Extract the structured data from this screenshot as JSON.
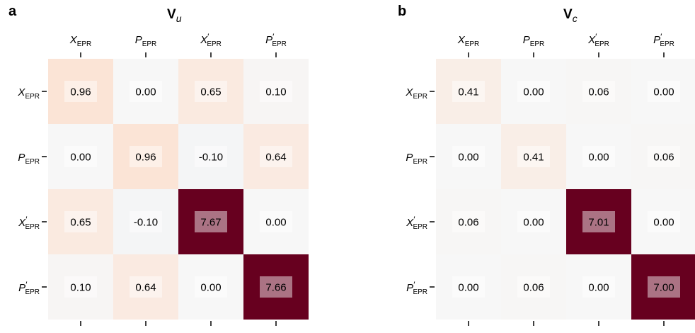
{
  "chart_data": [
    {
      "type": "heatmap",
      "panel": "a",
      "title": "V",
      "title_subscript": "u",
      "labels": [
        {
          "main": "X",
          "prime": "",
          "sub": "EPR"
        },
        {
          "main": "P",
          "prime": "",
          "sub": "EPR"
        },
        {
          "main": "X",
          "prime": "′",
          "sub": "EPR"
        },
        {
          "main": "P",
          "prime": "′",
          "sub": "EPR"
        }
      ],
      "values": [
        [
          0.96,
          0.0,
          0.65,
          0.1
        ],
        [
          0.0,
          0.96,
          -0.1,
          0.64
        ],
        [
          0.65,
          -0.1,
          7.67,
          0.0
        ],
        [
          0.1,
          0.64,
          0.0,
          7.66
        ]
      ],
      "value_labels": [
        [
          "0.96",
          "0.00",
          "0.65",
          "0.10"
        ],
        [
          "0.00",
          "0.96",
          "-0.10",
          "0.64"
        ],
        [
          "0.65",
          "-0.10",
          "7.67",
          "0.00"
        ],
        [
          "0.10",
          "0.64",
          "0.00",
          "7.66"
        ]
      ],
      "colormap": "diverging blue-white-red, centered at 0",
      "color_max": 7.67
    },
    {
      "type": "heatmap",
      "panel": "b",
      "title": "V",
      "title_subscript": "c",
      "labels": [
        {
          "main": "X",
          "prime": "",
          "sub": "EPR"
        },
        {
          "main": "P",
          "prime": "",
          "sub": "EPR"
        },
        {
          "main": "X",
          "prime": "′",
          "sub": "EPR"
        },
        {
          "main": "P",
          "prime": "′",
          "sub": "EPR"
        }
      ],
      "values": [
        [
          0.41,
          0.0,
          0.06,
          0.0
        ],
        [
          0.0,
          0.41,
          0.0,
          0.06
        ],
        [
          0.06,
          0.0,
          7.01,
          0.0
        ],
        [
          0.0,
          0.06,
          0.0,
          7.0
        ]
      ],
      "value_labels": [
        [
          "0.41",
          "0.00",
          "0.06",
          "0.00"
        ],
        [
          "0.00",
          "0.41",
          "0.00",
          "0.06"
        ],
        [
          "0.06",
          "0.00",
          "7.01",
          "0.00"
        ],
        [
          "0.00",
          "0.06",
          "0.00",
          "7.00"
        ]
      ],
      "colormap": "diverging blue-white-red, centered at 0",
      "color_max": 7.01
    }
  ]
}
